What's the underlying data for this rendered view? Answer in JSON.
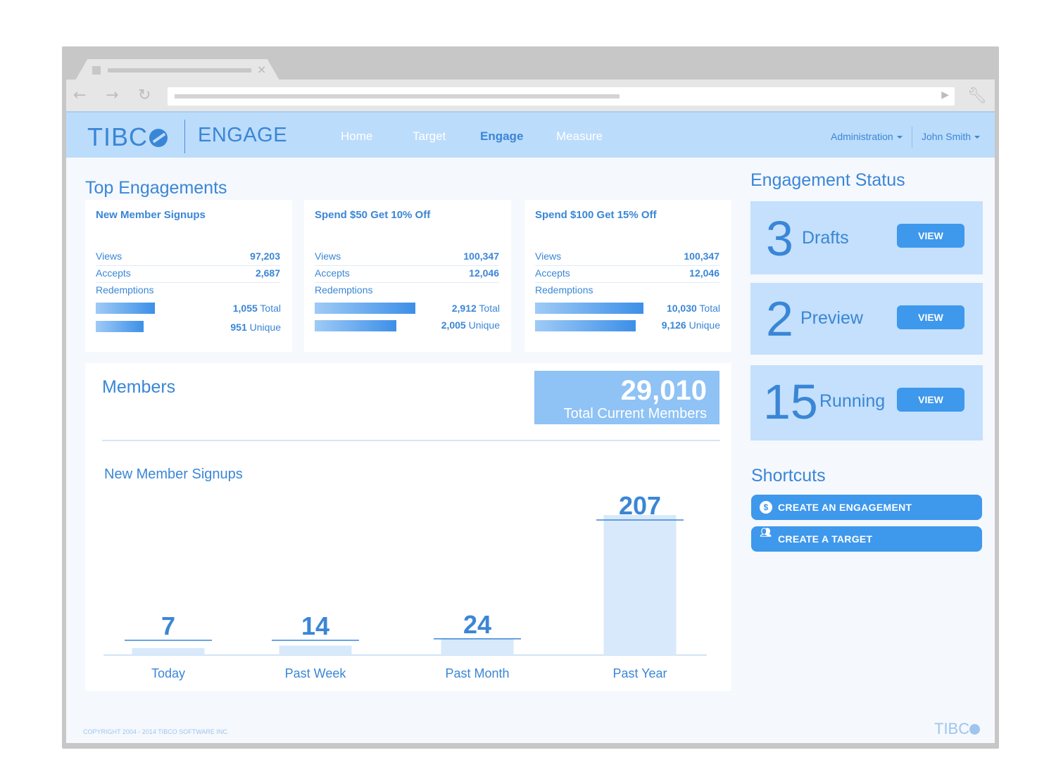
{
  "brand": {
    "logo": "TIBC",
    "product": "ENGAGE",
    "footer_logo": "TIBC"
  },
  "nav": {
    "items": [
      "Home",
      "Target",
      "Engage",
      "Measure"
    ],
    "active": "Engage",
    "admin": "Administration",
    "user": "John Smith"
  },
  "top_engagements": {
    "heading": "Top Engagements",
    "cards": [
      {
        "title": "New Member Signups",
        "views_label": "Views",
        "views": "97,203",
        "accepts_label": "Accepts",
        "accepts": "2,687",
        "redemptions_label": "Redemptions",
        "total": "1,055",
        "total_label": "Total",
        "unique": "951",
        "unique_label": "Unique",
        "total_fraction": 0.55,
        "unique_fraction": 0.45
      },
      {
        "title": "Spend $50 Get 10% Off",
        "views_label": "Views",
        "views": "100,347",
        "accepts_label": "Accepts",
        "accepts": "12,046",
        "redemptions_label": "Redemptions",
        "total": "2,912",
        "total_label": "Total",
        "unique": "2,005",
        "unique_label": "Unique",
        "total_fraction": 0.93,
        "unique_fraction": 0.75
      },
      {
        "title": "Spend $100 Get 15% Off",
        "views_label": "Views",
        "views": "100,347",
        "accepts_label": "Accepts",
        "accepts": "12,046",
        "redemptions_label": "Redemptions",
        "total": "10,030",
        "total_label": "Total",
        "unique": "9,126",
        "unique_label": "Unique",
        "total_fraction": 1.0,
        "unique_fraction": 0.93
      }
    ]
  },
  "members": {
    "heading": "Members",
    "total": "29,010",
    "total_label": "Total Current Members",
    "chart_heading": "New Member Signups"
  },
  "chart_data": {
    "type": "bar",
    "title": "New Member Signups",
    "categories": [
      "Today",
      "Past Week",
      "Past Month",
      "Past Year"
    ],
    "values": [
      7,
      14,
      24,
      207
    ],
    "ylim": [
      0,
      207
    ]
  },
  "status": {
    "heading": "Engagement Status",
    "items": [
      {
        "count": "3",
        "label": "Drafts",
        "button": "VIEW"
      },
      {
        "count": "2",
        "label": "Preview",
        "button": "VIEW"
      },
      {
        "count": "15",
        "label": "Running",
        "button": "VIEW"
      }
    ]
  },
  "shortcuts": {
    "heading": "Shortcuts",
    "items": [
      {
        "label": "CREATE AN ENGAGEMENT",
        "icon": "dollar-badge-icon"
      },
      {
        "label": "CREATE A TARGET",
        "icon": "people-icon"
      }
    ]
  },
  "footer": {
    "copyright": "COPYRIGHT 2004 - 2014 TIBCO SOFTWARE INC."
  },
  "colors": {
    "accent": "#3a86d6",
    "button": "#3e98ec",
    "nav_bg": "#bcdcfb"
  }
}
